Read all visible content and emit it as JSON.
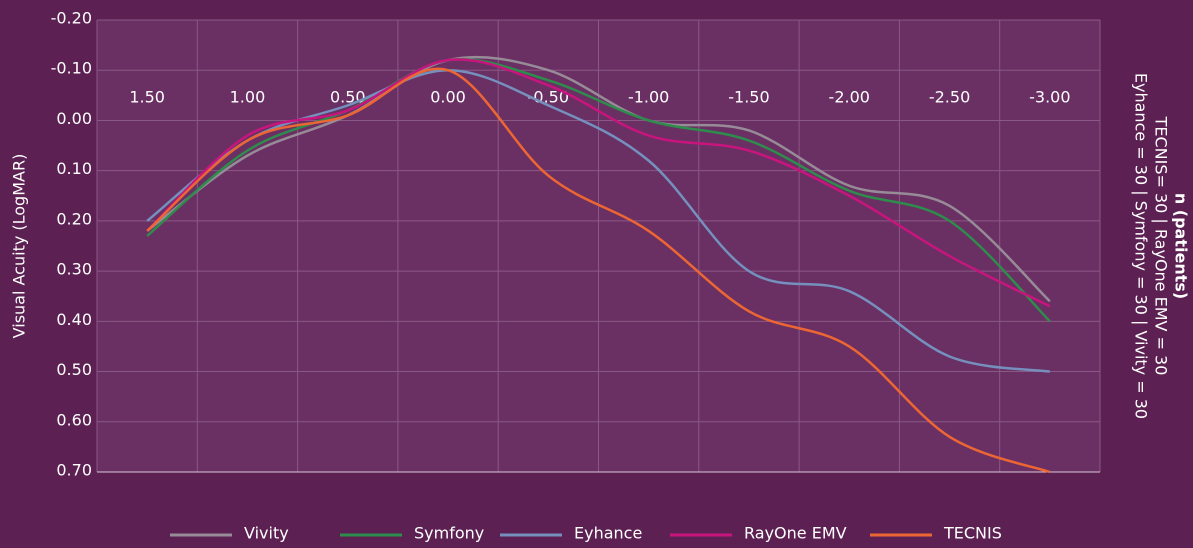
{
  "chart_data": {
    "type": "line",
    "y_label": "Visual Acuity (LogMAR)",
    "annotations": [
      "n (patients)",
      "TECNIS= 30 | RayOne EMV = 30",
      "Eyhance = 30 | Symfony = 30 | Vivity = 30"
    ],
    "categories": [
      "1.50",
      "1.00",
      "0.50",
      "0.00",
      "-0.50",
      "-1.00",
      "-1.50",
      "-2.00",
      "-2.50",
      "-3.00"
    ],
    "series": [
      {
        "name": "Vivity",
        "color": "#978b98",
        "values": [
          0.22,
          0.07,
          -0.01,
          -0.12,
          -0.1,
          0.0,
          0.02,
          0.13,
          0.17,
          0.36
        ]
      },
      {
        "name": "Symfony",
        "color": "#2e8c4c",
        "values": [
          0.23,
          0.06,
          -0.02,
          -0.12,
          -0.08,
          0.0,
          0.04,
          0.14,
          0.2,
          0.4
        ]
      },
      {
        "name": "Eyhance",
        "color": "#7590bd",
        "values": [
          0.2,
          0.04,
          -0.03,
          -0.1,
          -0.03,
          0.08,
          0.3,
          0.34,
          0.47,
          0.5
        ]
      },
      {
        "name": "RayOne EMV",
        "color": "#c8157e",
        "values": [
          0.22,
          0.03,
          -0.02,
          -0.12,
          -0.07,
          0.03,
          0.06,
          0.15,
          0.27,
          0.37
        ]
      },
      {
        "name": "TECNIS",
        "color": "#ec6634",
        "values": [
          0.22,
          0.04,
          -0.01,
          -0.1,
          0.11,
          0.22,
          0.38,
          0.45,
          0.63,
          0.7
        ]
      }
    ],
    "ylim": [
      -0.2,
      0.7
    ],
    "y_inverted": true,
    "yticks": [
      {
        "value": -0.2,
        "label": "-0.20"
      },
      {
        "value": -0.1,
        "label": "-0.10"
      },
      {
        "value": 0,
        "label": "0.00"
      },
      {
        "value": 0.1,
        "label": "0.10"
      },
      {
        "value": 0.2,
        "label": "0.20"
      },
      {
        "value": 0.3,
        "label": "0.30"
      },
      {
        "value": 0.4,
        "label": "0.40"
      },
      {
        "value": 0.5,
        "label": "0.50"
      },
      {
        "value": 0.6,
        "label": "0.60"
      },
      {
        "value": 0.7,
        "label": "0.70"
      }
    ],
    "grid": true,
    "legend": "bottom"
  }
}
